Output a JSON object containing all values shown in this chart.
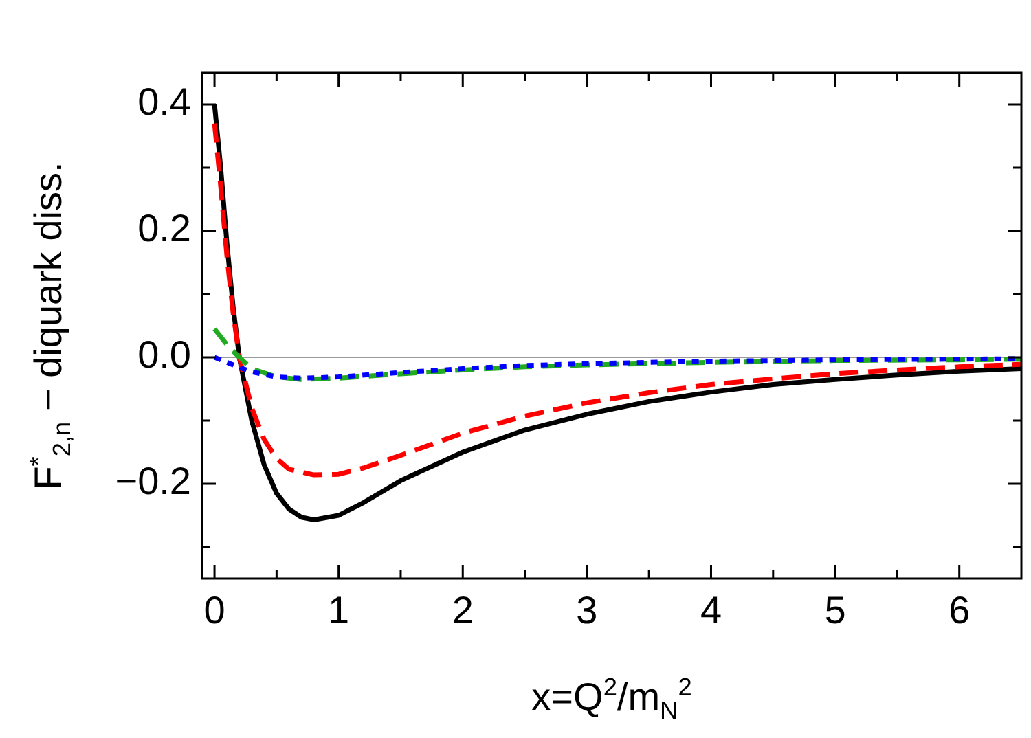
{
  "chart_data": {
    "type": "line",
    "xlabel": "x=Q$^{2}$/m$_{N}$$^{2}$",
    "ylabel": "F$^{*}$$_{2,n}$ − diquark diss.",
    "xlim": [
      -0.1,
      6.5
    ],
    "ylim": [
      -0.35,
      0.45
    ],
    "xticks": [
      0,
      {
        "value": 0.5,
        "label": null
      },
      1,
      {
        "value": 1.5,
        "label": null
      },
      2,
      {
        "value": 2.5,
        "label": null
      },
      3,
      {
        "value": 3.5,
        "label": null
      },
      4,
      {
        "value": 4.5,
        "label": null
      },
      5,
      {
        "value": 5.5,
        "label": null
      },
      6
    ],
    "yticks": [
      {
        "value": -0.3,
        "label": null
      },
      {
        "value": -0.2,
        "label": "−0.2"
      },
      {
        "value": -0.1,
        "label": null
      },
      {
        "value": 0,
        "label": "0.0"
      },
      {
        "value": 0.1,
        "label": null
      },
      {
        "value": 0.2,
        "label": "0.2"
      },
      {
        "value": 0.3,
        "label": null
      },
      {
        "value": 0.4,
        "label": "0.4"
      }
    ],
    "grid": false,
    "legend": false,
    "marker": "none",
    "ref_lines": [
      {
        "axis": "y",
        "value": 0,
        "color": "#999999"
      }
    ],
    "series": [
      {
        "color": "#000000",
        "line_style": "solid",
        "x": [
          0,
          0.05,
          0.1,
          0.15,
          0.2,
          0.3,
          0.4,
          0.5,
          0.6,
          0.7,
          0.8,
          1.0,
          1.2,
          1.5,
          2,
          2.5,
          3,
          3.5,
          4,
          4.5,
          5,
          5.5,
          6,
          6.5
        ],
        "values": [
          0.4,
          0.3,
          0.18,
          0.08,
          0.0,
          -0.1,
          -0.17,
          -0.215,
          -0.24,
          -0.253,
          -0.257,
          -0.25,
          -0.23,
          -0.195,
          -0.15,
          -0.115,
          -0.09,
          -0.07,
          -0.055,
          -0.043,
          -0.035,
          -0.028,
          -0.022,
          -0.018
        ]
      },
      {
        "color": "#ff0000",
        "line_style": "dashed",
        "x": [
          0,
          0.05,
          0.1,
          0.15,
          0.2,
          0.3,
          0.4,
          0.5,
          0.6,
          0.8,
          1.0,
          1.2,
          1.5,
          2,
          2.5,
          3,
          3.5,
          4,
          4.5,
          5,
          5.5,
          6,
          6.5
        ],
        "values": [
          0.37,
          0.27,
          0.16,
          0.07,
          0.0,
          -0.08,
          -0.13,
          -0.16,
          -0.177,
          -0.186,
          -0.185,
          -0.175,
          -0.155,
          -0.12,
          -0.093,
          -0.072,
          -0.056,
          -0.043,
          -0.034,
          -0.026,
          -0.02,
          -0.015,
          -0.011
        ]
      },
      {
        "color": "#22aa22",
        "line_style": "dashed",
        "x": [
          0,
          0.1,
          0.2,
          0.3,
          0.5,
          0.7,
          1.0,
          1.5,
          2,
          2.5,
          3,
          4,
          5,
          6,
          6.5
        ],
        "values": [
          0.045,
          0.02,
          0.0,
          -0.018,
          -0.031,
          -0.035,
          -0.033,
          -0.026,
          -0.02,
          -0.015,
          -0.012,
          -0.008,
          -0.005,
          -0.004,
          -0.003
        ]
      },
      {
        "color": "#0000ff",
        "line_style": "dotted",
        "x": [
          0,
          0.1,
          0.2,
          0.3,
          0.5,
          0.7,
          1.0,
          1.5,
          2,
          2.5,
          3,
          4,
          5,
          6,
          6.5
        ],
        "values": [
          0.0,
          -0.008,
          -0.016,
          -0.023,
          -0.031,
          -0.033,
          -0.031,
          -0.024,
          -0.018,
          -0.013,
          -0.01,
          -0.006,
          -0.004,
          -0.003,
          -0.002
        ]
      }
    ]
  }
}
